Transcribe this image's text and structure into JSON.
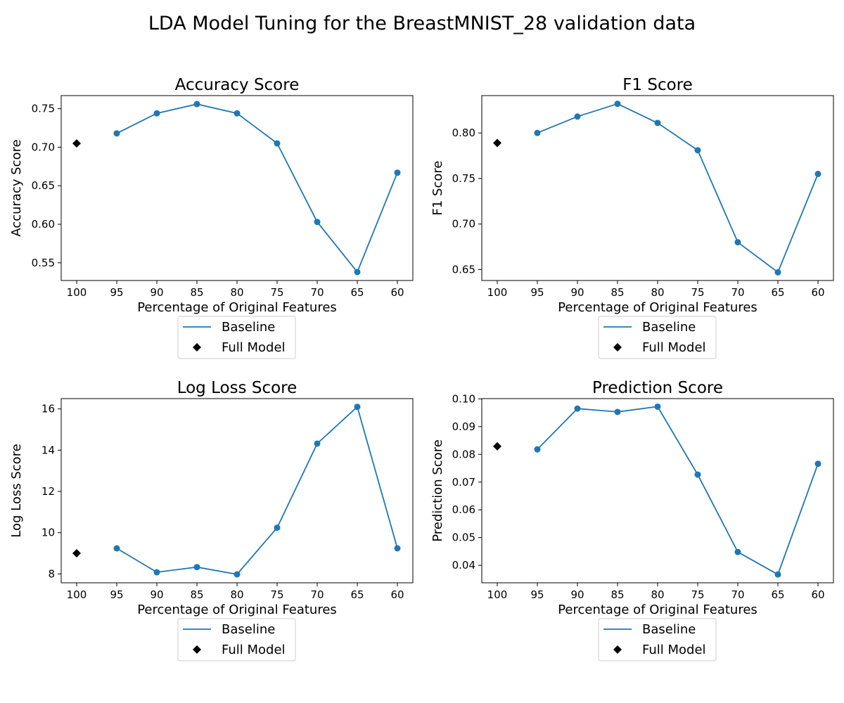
{
  "figure": {
    "title": "LDA Model Tuning for the BreastMNIST_28 validation data"
  },
  "colors": {
    "baseline": "#1f77b4",
    "full_model": "#000000",
    "axes": "#000000",
    "legend_border": "#cccccc"
  },
  "chart_data": [
    {
      "type": "line",
      "title": "Accuracy Score",
      "xlabel": "Percentage of Original Features",
      "ylabel": "Accuracy Score",
      "x_direction": "descending",
      "categories": [
        "100",
        "95",
        "90",
        "85",
        "80",
        "75",
        "70",
        "65",
        "60"
      ],
      "series": [
        {
          "name": "Baseline",
          "marker": "circle",
          "x": [
            95,
            90,
            85,
            80,
            75,
            70,
            65,
            60
          ],
          "values": [
            0.718,
            0.744,
            0.756,
            0.744,
            0.705,
            0.603,
            0.538,
            0.667
          ]
        },
        {
          "name": "Full Model",
          "marker": "diamond",
          "x": [
            100
          ],
          "values": [
            0.705
          ]
        }
      ],
      "ylim": [
        0.527,
        0.767
      ],
      "yticks": [
        0.55,
        0.6,
        0.65,
        0.7,
        0.75
      ],
      "ytick_labels": [
        "0.55",
        "0.60",
        "0.65",
        "0.70",
        "0.75"
      ],
      "legend": {
        "placement": "below",
        "entries": [
          "Baseline",
          "Full Model"
        ]
      },
      "grid": false
    },
    {
      "type": "line",
      "title": "F1 Score",
      "xlabel": "Percentage of Original Features",
      "ylabel": "F1 Score",
      "x_direction": "descending",
      "categories": [
        "100",
        "95",
        "90",
        "85",
        "80",
        "75",
        "70",
        "65",
        "60"
      ],
      "series": [
        {
          "name": "Baseline",
          "marker": "circle",
          "x": [
            95,
            90,
            85,
            80,
            75,
            70,
            65,
            60
          ],
          "values": [
            0.8,
            0.818,
            0.832,
            0.811,
            0.781,
            0.68,
            0.647,
            0.755
          ]
        },
        {
          "name": "Full Model",
          "marker": "diamond",
          "x": [
            100
          ],
          "values": [
            0.789
          ]
        }
      ],
      "ylim": [
        0.638,
        0.841
      ],
      "yticks": [
        0.65,
        0.7,
        0.75,
        0.8
      ],
      "ytick_labels": [
        "0.65",
        "0.70",
        "0.75",
        "0.80"
      ],
      "legend": {
        "placement": "below",
        "entries": [
          "Baseline",
          "Full Model"
        ]
      },
      "grid": false
    },
    {
      "type": "line",
      "title": "Log Loss Score",
      "xlabel": "Percentage of Original Features",
      "ylabel": "Log Loss Score",
      "x_direction": "descending",
      "categories": [
        "100",
        "95",
        "90",
        "85",
        "80",
        "75",
        "70",
        "65",
        "60"
      ],
      "series": [
        {
          "name": "Baseline",
          "marker": "circle",
          "x": [
            95,
            90,
            85,
            80,
            75,
            70,
            65,
            60
          ],
          "values": [
            9.24,
            8.08,
            8.33,
            7.98,
            10.24,
            14.32,
            16.1,
            9.24
          ]
        },
        {
          "name": "Full Model",
          "marker": "diamond",
          "x": [
            100
          ],
          "values": [
            9.0
          ]
        }
      ],
      "ylim": [
        7.57,
        16.5
      ],
      "yticks": [
        8,
        10,
        12,
        14,
        16
      ],
      "ytick_labels": [
        "8",
        "10",
        "12",
        "14",
        "16"
      ],
      "legend": {
        "placement": "below",
        "entries": [
          "Baseline",
          "Full Model"
        ]
      },
      "grid": false
    },
    {
      "type": "line",
      "title": "Prediction Score",
      "xlabel": "Percentage of Original Features",
      "ylabel": "Prediction Score",
      "x_direction": "descending",
      "categories": [
        "100",
        "95",
        "90",
        "85",
        "80",
        "75",
        "70",
        "65",
        "60"
      ],
      "series": [
        {
          "name": "Baseline",
          "marker": "circle",
          "x": [
            95,
            90,
            85,
            80,
            75,
            70,
            65,
            60
          ],
          "values": [
            0.0818,
            0.0965,
            0.0953,
            0.0972,
            0.0727,
            0.0448,
            0.0367,
            0.0766
          ]
        },
        {
          "name": "Full Model",
          "marker": "diamond",
          "x": [
            100
          ],
          "values": [
            0.0829
          ]
        }
      ],
      "ylim": [
        0.0337,
        0.1001
      ],
      "yticks": [
        0.04,
        0.05,
        0.06,
        0.07,
        0.08,
        0.09,
        0.1
      ],
      "ytick_labels": [
        "0.04",
        "0.05",
        "0.06",
        "0.07",
        "0.08",
        "0.09",
        "0.10"
      ],
      "legend": {
        "placement": "below",
        "entries": [
          "Baseline",
          "Full Model"
        ]
      },
      "grid": false
    }
  ]
}
